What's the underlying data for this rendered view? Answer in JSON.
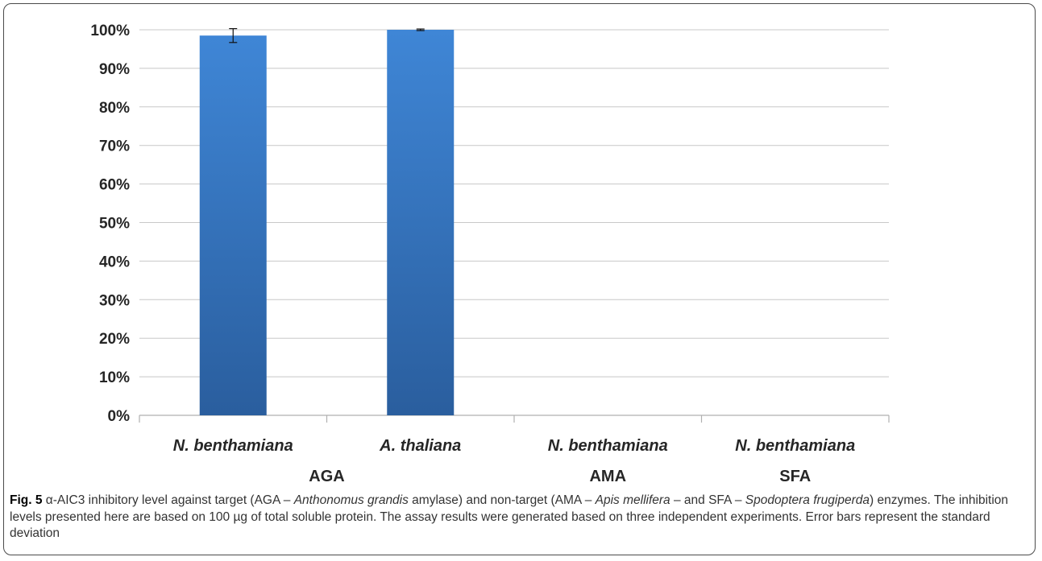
{
  "chart_data": {
    "type": "bar",
    "categories": [
      "N. benthamiana",
      "A. thaliana",
      "N. benthamiana",
      "N. benthamiana"
    ],
    "groups": [
      {
        "label": "AGA",
        "categories": [
          0,
          1
        ]
      },
      {
        "label": "AMA",
        "categories": [
          2
        ]
      },
      {
        "label": "SFA",
        "categories": [
          3
        ]
      }
    ],
    "values": [
      98.5,
      100,
      0,
      0
    ],
    "errors": [
      1.8,
      0.2,
      0,
      0
    ],
    "ylim": [
      0,
      100
    ],
    "yticks": [
      0,
      10,
      20,
      30,
      40,
      50,
      60,
      70,
      80,
      90,
      100
    ],
    "ytick_labels": [
      "0%",
      "10%",
      "20%",
      "30%",
      "40%",
      "50%",
      "60%",
      "70%",
      "80%",
      "90%",
      "100%"
    ],
    "grid": true,
    "bar_color": "#3a7cc9",
    "title": "",
    "xlabel": "",
    "ylabel": ""
  },
  "caption": {
    "fig_label": "Fig. 5",
    "p1": " α-AIC3 inhibitory level against target (AGA – ",
    "i1": "Anthonomus grandis",
    "p2": " amylase) and non-target (AMA – ",
    "i2": "Apis mellifera",
    "p3": " – and SFA – ",
    "i3": "Spodoptera frugiperda",
    "p4": ") enzymes. The inhibition levels presented here are based on 100 µg of total soluble protein. The assay results were generated based on three independent experiments. Error bars represent the standard deviation"
  }
}
